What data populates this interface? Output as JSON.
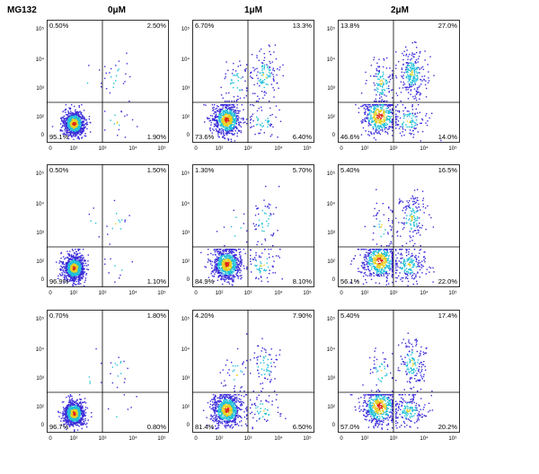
{
  "header": {
    "treatment_label": "MG132",
    "columns": [
      "0μM",
      "1μM",
      "2μM"
    ]
  },
  "chart_data": {
    "type": "scatter",
    "xlabel": "",
    "ylabel": "",
    "axis_scale": "log",
    "x_ticks": [
      "0",
      "10²",
      "10³",
      "10⁴",
      "10⁵"
    ],
    "y_ticks": [
      "0",
      "10²",
      "10³",
      "10⁴",
      "10⁵"
    ],
    "panels": [
      {
        "row": 1,
        "column": "0μM",
        "quadrants": {
          "upper_left": "0.50%",
          "upper_right": "2.50%",
          "lower_left": "95.1%",
          "lower_right": "1.90%"
        }
      },
      {
        "row": 1,
        "column": "1μM",
        "quadrants": {
          "upper_left": "6.70%",
          "upper_right": "13.3%",
          "lower_left": "73.6%",
          "lower_right": "6.40%"
        }
      },
      {
        "row": 1,
        "column": "2μM",
        "quadrants": {
          "upper_left": "13.8%",
          "upper_right": "27.0%",
          "lower_left": "46.6%",
          "lower_right": "14.0%"
        }
      },
      {
        "row": 2,
        "column": "0μM",
        "quadrants": {
          "upper_left": "0.50%",
          "upper_right": "1.50%",
          "lower_left": "96.9%",
          "lower_right": "1.10%"
        }
      },
      {
        "row": 2,
        "column": "1μM",
        "quadrants": {
          "upper_left": "1.30%",
          "upper_right": "5.70%",
          "lower_left": "84.9%",
          "lower_right": "8.10%"
        }
      },
      {
        "row": 2,
        "column": "2μM",
        "quadrants": {
          "upper_left": "5.40%",
          "upper_right": "16.5%",
          "lower_left": "56.1%",
          "lower_right": "22.0%"
        }
      },
      {
        "row": 3,
        "column": "0μM",
        "quadrants": {
          "upper_left": "0.70%",
          "upper_right": "1.80%",
          "lower_left": "96.7%",
          "lower_right": "0.80%"
        }
      },
      {
        "row": 3,
        "column": "1μM",
        "quadrants": {
          "upper_left": "4.20%",
          "upper_right": "7.90%",
          "lower_left": "81.4%",
          "lower_right": "6.50%"
        }
      },
      {
        "row": 3,
        "column": "2μM",
        "quadrants": {
          "upper_left": "5.40%",
          "upper_right": "17.4%",
          "lower_left": "57.0%",
          "lower_right": "20.2%"
        }
      }
    ],
    "colors": {
      "density_low": "#3b2bd9",
      "density_mid": "#22c0d8",
      "density_high": "#e8d020",
      "density_peak": "#e02a1a"
    }
  }
}
